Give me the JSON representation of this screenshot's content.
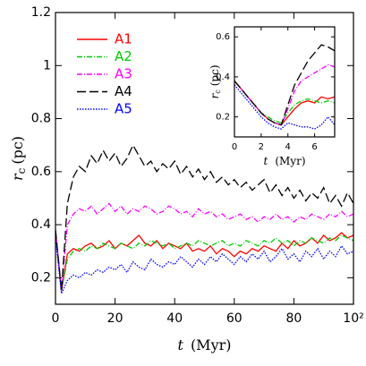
{
  "chart_data": [
    {
      "type": "line",
      "xlabel": {
        "symbol": "t",
        "unit": "(Myr)"
      },
      "ylabel": {
        "symbol": "r",
        "sub": "c",
        "unit": "(pc)"
      },
      "x": [
        0,
        2,
        4,
        6,
        8,
        10,
        12,
        14,
        16,
        18,
        20,
        22,
        24,
        26,
        28,
        30,
        32,
        34,
        36,
        38,
        40,
        42,
        44,
        46,
        48,
        50,
        52,
        54,
        56,
        58,
        60,
        62,
        64,
        66,
        68,
        70,
        72,
        74,
        76,
        78,
        80,
        82,
        84,
        86,
        88,
        90,
        92,
        94,
        96,
        98,
        100
      ],
      "xlim": [
        0,
        100
      ],
      "xticks": [
        0,
        20,
        40,
        60,
        80,
        {
          "value": 100,
          "label": "10²"
        }
      ],
      "ylim": [
        0.1,
        1.2
      ],
      "yticks": [
        0.2,
        0.4,
        0.6,
        0.8,
        1,
        1.2
      ],
      "legend": "upper left",
      "series": [
        {
          "name": "A1",
          "color": "#ff0000",
          "dash": "none",
          "values": [
            0.38,
            0.15,
            0.29,
            0.31,
            0.3,
            0.32,
            0.33,
            0.31,
            0.32,
            0.34,
            0.31,
            0.33,
            0.32,
            0.34,
            0.36,
            0.33,
            0.32,
            0.34,
            0.31,
            0.33,
            0.32,
            0.31,
            0.33,
            0.3,
            0.31,
            0.3,
            0.32,
            0.29,
            0.31,
            0.3,
            0.28,
            0.3,
            0.29,
            0.31,
            0.3,
            0.32,
            0.31,
            0.3,
            0.33,
            0.31,
            0.34,
            0.32,
            0.33,
            0.35,
            0.33,
            0.36,
            0.34,
            0.35,
            0.37,
            0.35,
            0.36
          ]
        },
        {
          "name": "A2",
          "color": "#00cc00",
          "dash": "6,2,1,2",
          "values": [
            0.38,
            0.15,
            0.27,
            0.3,
            0.31,
            0.3,
            0.32,
            0.31,
            0.33,
            0.32,
            0.31,
            0.33,
            0.32,
            0.31,
            0.33,
            0.32,
            0.34,
            0.33,
            0.32,
            0.33,
            0.31,
            0.32,
            0.33,
            0.32,
            0.34,
            0.33,
            0.32,
            0.33,
            0.34,
            0.32,
            0.33,
            0.32,
            0.34,
            0.33,
            0.32,
            0.34,
            0.33,
            0.35,
            0.33,
            0.34,
            0.32,
            0.34,
            0.33,
            0.35,
            0.34,
            0.33,
            0.35,
            0.34,
            0.36,
            0.35,
            0.34
          ]
        },
        {
          "name": "A3",
          "color": "#ff00ff",
          "dash": "6,2,1,2",
          "values": [
            0.38,
            0.15,
            0.4,
            0.44,
            0.46,
            0.45,
            0.47,
            0.44,
            0.46,
            0.48,
            0.45,
            0.47,
            0.44,
            0.46,
            0.45,
            0.47,
            0.46,
            0.44,
            0.45,
            0.47,
            0.46,
            0.44,
            0.45,
            0.43,
            0.46,
            0.44,
            0.45,
            0.43,
            0.44,
            0.42,
            0.43,
            0.44,
            0.42,
            0.43,
            0.41,
            0.43,
            0.42,
            0.44,
            0.42,
            0.43,
            0.41,
            0.43,
            0.42,
            0.44,
            0.43,
            0.42,
            0.44,
            0.43,
            0.45,
            0.43,
            0.44
          ]
        },
        {
          "name": "A4",
          "color": "#000000",
          "dash": "10,4",
          "values": [
            0.38,
            0.15,
            0.48,
            0.58,
            0.62,
            0.6,
            0.66,
            0.63,
            0.68,
            0.64,
            0.67,
            0.62,
            0.65,
            0.7,
            0.66,
            0.62,
            0.64,
            0.6,
            0.63,
            0.61,
            0.64,
            0.59,
            0.62,
            0.58,
            0.61,
            0.57,
            0.6,
            0.56,
            0.58,
            0.55,
            0.57,
            0.54,
            0.56,
            0.53,
            0.55,
            0.57,
            0.52,
            0.55,
            0.51,
            0.54,
            0.5,
            0.53,
            0.49,
            0.52,
            0.5,
            0.54,
            0.48,
            0.51,
            0.47,
            0.52,
            0.48
          ]
        },
        {
          "name": "A5",
          "color": "#0000ff",
          "dash": "1.5,1.5",
          "values": [
            0.35,
            0.14,
            0.19,
            0.21,
            0.2,
            0.22,
            0.21,
            0.23,
            0.22,
            0.24,
            0.23,
            0.25,
            0.22,
            0.26,
            0.24,
            0.23,
            0.27,
            0.25,
            0.24,
            0.26,
            0.25,
            0.28,
            0.26,
            0.24,
            0.27,
            0.25,
            0.28,
            0.26,
            0.29,
            0.27,
            0.25,
            0.28,
            0.26,
            0.29,
            0.27,
            0.3,
            0.26,
            0.28,
            0.31,
            0.27,
            0.29,
            0.26,
            0.3,
            0.28,
            0.31,
            0.27,
            0.3,
            0.28,
            0.32,
            0.29,
            0.3
          ]
        }
      ]
    },
    {
      "type": "line",
      "xlabel": {
        "symbol": "t",
        "unit": "(Myr)"
      },
      "ylabel": {
        "symbol": "r",
        "sub": "c",
        "unit": "(pc)"
      },
      "x": [
        0,
        0.5,
        1,
        1.5,
        2,
        2.5,
        3,
        3.5,
        4,
        4.5,
        5,
        5.5,
        6,
        6.5,
        7,
        7.5
      ],
      "xlim": [
        0,
        7.5
      ],
      "xticks": [
        0,
        2,
        4,
        6
      ],
      "ylim": [
        0.1,
        0.65
      ],
      "yticks": [
        0.2,
        0.4,
        0.6
      ],
      "series": [
        {
          "color": "#ff0000",
          "dash": "none",
          "values": [
            0.38,
            0.34,
            0.3,
            0.26,
            0.22,
            0.19,
            0.17,
            0.16,
            0.2,
            0.24,
            0.27,
            0.28,
            0.27,
            0.3,
            0.29,
            0.3
          ]
        },
        {
          "color": "#00cc00",
          "dash": "6,2,1,2",
          "values": [
            0.38,
            0.34,
            0.3,
            0.26,
            0.22,
            0.2,
            0.18,
            0.17,
            0.22,
            0.26,
            0.28,
            0.29,
            0.28,
            0.27,
            0.28,
            0.27
          ]
        },
        {
          "color": "#ff00ff",
          "dash": "6,2,1,2",
          "values": [
            0.38,
            0.34,
            0.3,
            0.26,
            0.22,
            0.19,
            0.17,
            0.16,
            0.24,
            0.33,
            0.38,
            0.4,
            0.42,
            0.44,
            0.46,
            0.45
          ]
        },
        {
          "color": "#000000",
          "dash": "10,4",
          "values": [
            0.38,
            0.34,
            0.3,
            0.26,
            0.22,
            0.19,
            0.17,
            0.16,
            0.26,
            0.36,
            0.42,
            0.48,
            0.52,
            0.56,
            0.55,
            0.53
          ]
        },
        {
          "color": "#0000ff",
          "dash": "1.5,1.5",
          "values": [
            0.36,
            0.32,
            0.28,
            0.24,
            0.2,
            0.17,
            0.15,
            0.14,
            0.17,
            0.16,
            0.15,
            0.15,
            0.14,
            0.16,
            0.2,
            0.16
          ]
        }
      ]
    }
  ]
}
